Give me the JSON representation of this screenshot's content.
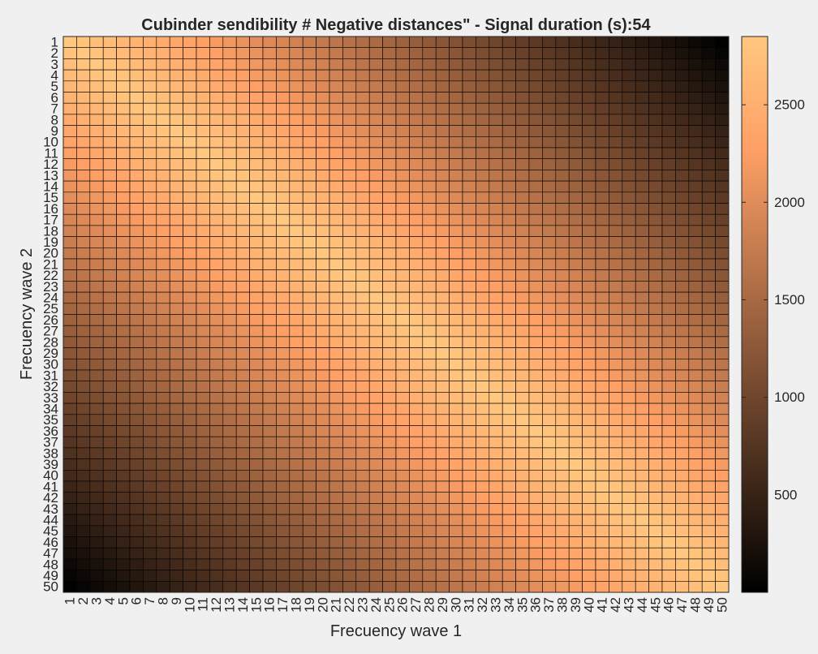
{
  "chart_data": {
    "type": "heatmap",
    "title": "Cubinder sendibility # Negative distances\" - Signal duration (s):54",
    "xlabel": "Frecuency wave 1",
    "ylabel": "Frecuency wave 2",
    "x_categories": [
      1,
      2,
      3,
      4,
      5,
      6,
      7,
      8,
      9,
      10,
      11,
      12,
      13,
      14,
      15,
      16,
      17,
      18,
      19,
      20,
      21,
      22,
      23,
      24,
      25,
      26,
      27,
      28,
      29,
      30,
      31,
      32,
      33,
      34,
      35,
      36,
      37,
      38,
      39,
      40,
      41,
      42,
      43,
      44,
      45,
      46,
      47,
      48,
      49,
      50
    ],
    "y_categories": [
      1,
      2,
      3,
      4,
      5,
      6,
      7,
      8,
      9,
      10,
      11,
      12,
      13,
      14,
      15,
      16,
      17,
      18,
      19,
      20,
      21,
      22,
      23,
      24,
      25,
      26,
      27,
      28,
      29,
      30,
      31,
      32,
      33,
      34,
      35,
      36,
      37,
      38,
      39,
      40,
      41,
      42,
      43,
      44,
      45,
      46,
      47,
      48,
      49,
      50
    ],
    "colormap": "copper",
    "color_range": [
      0,
      2850
    ],
    "colorbar_ticks": [
      500,
      1000,
      1500,
      2000,
      2500
    ],
    "value_model": {
      "description_of_reading": "Cell value approximated from the colour: high (about 2850) along the diagonal band where wave1 ≈ wave2, decaying with |wave1 - wave2|; near 0 at the bottom-left and top-right corners.",
      "peak": 2850,
      "decay_per_step": 58,
      "floor": 0
    },
    "colors": {
      "colormap_dark": "#000000",
      "colormap_light": "#ffc77f",
      "grid_line": "#000000",
      "figure_background": "#f0f0f0"
    }
  }
}
